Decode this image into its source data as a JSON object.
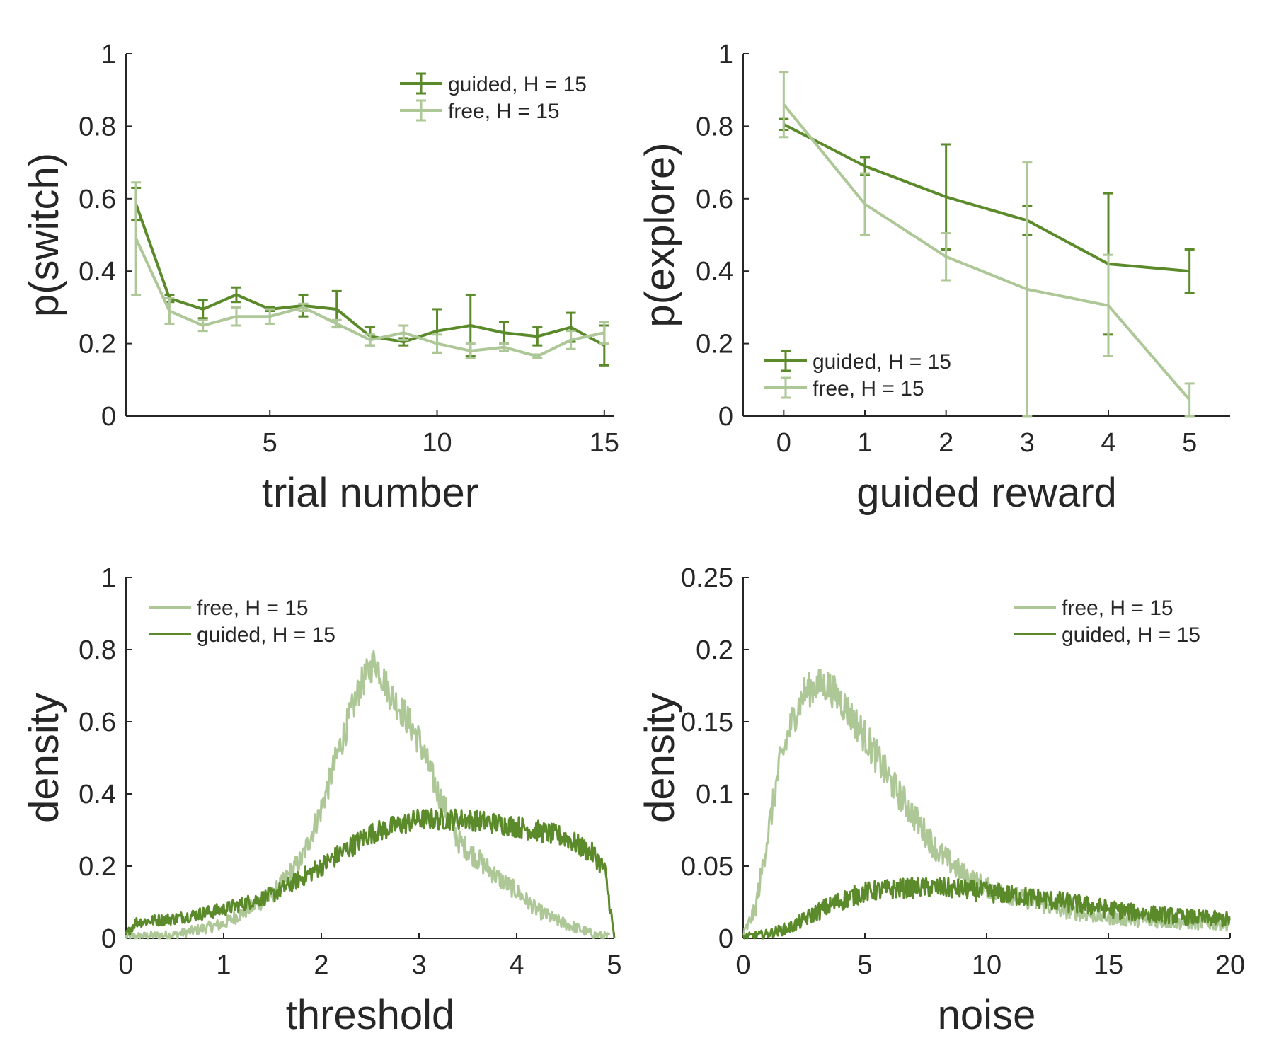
{
  "colors": {
    "guided": "#5b8a2a",
    "free": "#adc797",
    "axis": "#262626"
  },
  "chart_data": [
    {
      "id": "switch",
      "type": "line",
      "xlabel": "trial number",
      "ylabel": "p(switch)",
      "xlim": [
        0.7,
        15.3
      ],
      "ylim": [
        0,
        1
      ],
      "xticks": [
        5,
        10,
        15
      ],
      "xtick_labels": [
        "5",
        "10",
        "15"
      ],
      "yticks": [
        0,
        0.2,
        0.4,
        0.6,
        0.8,
        1
      ],
      "ytick_labels": [
        "0",
        "0.2",
        "0.4",
        "0.6",
        "0.8",
        "1"
      ],
      "legend_position": "top-right",
      "error_bars": true,
      "series": [
        {
          "key": "guided",
          "name": "guided, H = 15",
          "x": [
            1,
            2,
            3,
            4,
            5,
            6,
            7,
            8,
            9,
            10,
            11,
            12,
            13,
            14,
            15
          ],
          "y": [
            0.585,
            0.325,
            0.295,
            0.335,
            0.295,
            0.305,
            0.295,
            0.22,
            0.205,
            0.235,
            0.25,
            0.23,
            0.22,
            0.245,
            0.195
          ],
          "err": [
            0.045,
            0.01,
            0.025,
            0.02,
            0.005,
            0.03,
            0.05,
            0.025,
            0.01,
            0.06,
            0.085,
            0.03,
            0.025,
            0.04,
            0.055
          ]
        },
        {
          "key": "free",
          "name": "free, H = 15",
          "x": [
            1,
            2,
            3,
            4,
            5,
            6,
            7,
            8,
            9,
            10,
            11,
            12,
            13,
            14,
            15
          ],
          "y": [
            0.49,
            0.29,
            0.25,
            0.275,
            0.275,
            0.3,
            0.255,
            0.21,
            0.23,
            0.2,
            0.18,
            0.19,
            0.165,
            0.21,
            0.23
          ],
          "err": [
            0.155,
            0.035,
            0.015,
            0.025,
            0.02,
            0.01,
            0.01,
            0.015,
            0.02,
            0.025,
            0.02,
            0.01,
            0.005,
            0.025,
            0.03
          ]
        }
      ]
    },
    {
      "id": "explore",
      "type": "line",
      "xlabel": "guided reward",
      "ylabel": "p(explore)",
      "xlim": [
        -0.5,
        5.5
      ],
      "ylim": [
        0,
        1
      ],
      "xticks": [
        0,
        1,
        2,
        3,
        4,
        5
      ],
      "xtick_labels": [
        "0",
        "1",
        "2",
        "3",
        "4",
        "5"
      ],
      "yticks": [
        0,
        0.2,
        0.4,
        0.6,
        0.8,
        1
      ],
      "ytick_labels": [
        "0",
        "0.2",
        "0.4",
        "0.6",
        "0.8",
        "1"
      ],
      "legend_position": "bottom-left",
      "error_bars": true,
      "series": [
        {
          "key": "guided",
          "name": "guided, H = 15",
          "x": [
            0,
            1,
            2,
            3,
            4,
            5
          ],
          "y": [
            0.805,
            0.69,
            0.605,
            0.54,
            0.42,
            0.4
          ],
          "err": [
            0.015,
            0.025,
            0.145,
            0.04,
            0.195,
            0.06
          ]
        },
        {
          "key": "free",
          "name": "free, H = 15",
          "x": [
            0,
            1,
            2,
            3,
            4,
            5
          ],
          "y": [
            0.86,
            0.585,
            0.44,
            0.35,
            0.305,
            0.045
          ],
          "err": [
            0.09,
            0.085,
            0.065,
            0.35,
            0.14,
            0.045
          ]
        }
      ]
    },
    {
      "id": "threshold",
      "type": "line",
      "xlabel": "threshold",
      "ylabel": "density",
      "xlim": [
        0,
        5
      ],
      "ylim": [
        0,
        1
      ],
      "xticks": [
        0,
        1,
        2,
        3,
        4,
        5
      ],
      "xtick_labels": [
        "0",
        "1",
        "2",
        "3",
        "4",
        "5"
      ],
      "yticks": [
        0,
        0.2,
        0.4,
        0.6,
        0.8,
        1
      ],
      "ytick_labels": [
        "0",
        "0.2",
        "0.4",
        "0.6",
        "0.8",
        "1"
      ],
      "legend_position": "top-left",
      "error_bars": false,
      "series": [
        {
          "key": "free",
          "name": "free, H = 15",
          "x": [
            0,
            0.5,
            1,
            1.5,
            1.8,
            2,
            2.2,
            2.4,
            2.55,
            2.7,
            2.85,
            3,
            3.2,
            3.4,
            3.6,
            3.8,
            4,
            4.2,
            4.4,
            4.6,
            4.8,
            4.95
          ],
          "y": [
            0.005,
            0.01,
            0.04,
            0.12,
            0.22,
            0.36,
            0.54,
            0.7,
            0.77,
            0.68,
            0.62,
            0.55,
            0.4,
            0.27,
            0.22,
            0.17,
            0.13,
            0.08,
            0.05,
            0.03,
            0.01,
            0.005
          ],
          "noise": 0.045
        },
        {
          "key": "guided",
          "name": "guided, H = 15",
          "x": [
            0,
            0.1,
            0.5,
            1,
            1.5,
            2,
            2.5,
            3,
            3.5,
            4,
            4.5,
            4.8,
            4.9,
            4.96,
            5
          ],
          "y": [
            0.01,
            0.045,
            0.055,
            0.08,
            0.12,
            0.2,
            0.29,
            0.33,
            0.33,
            0.31,
            0.28,
            0.23,
            0.19,
            0.08,
            0.0
          ],
          "noise": 0.03
        }
      ]
    },
    {
      "id": "noise",
      "type": "line",
      "xlabel": "noise",
      "ylabel": "density",
      "xlim": [
        0,
        20
      ],
      "ylim": [
        0,
        0.25
      ],
      "xticks": [
        0,
        5,
        10,
        15,
        20
      ],
      "xtick_labels": [
        "0",
        "5",
        "10",
        "15",
        "20"
      ],
      "yticks": [
        0,
        0.05,
        0.1,
        0.15,
        0.2,
        0.25
      ],
      "ytick_labels": [
        "0",
        "0.05",
        "0.1",
        "0.15",
        "0.2",
        "0.25"
      ],
      "legend_position": "top-right",
      "error_bars": false,
      "series": [
        {
          "key": "free",
          "name": "free, H = 15",
          "x": [
            0,
            0.5,
            1,
            1.5,
            2,
            2.5,
            3,
            3.5,
            4,
            5,
            6,
            7,
            8,
            9,
            10,
            11,
            12,
            13,
            14,
            15,
            16,
            18,
            20
          ],
          "y": [
            0.002,
            0.02,
            0.07,
            0.12,
            0.15,
            0.17,
            0.175,
            0.175,
            0.165,
            0.14,
            0.11,
            0.085,
            0.06,
            0.045,
            0.035,
            0.03,
            0.025,
            0.02,
            0.017,
            0.015,
            0.013,
            0.011,
            0.01
          ],
          "noise": 0.012
        },
        {
          "key": "guided",
          "name": "guided, H = 15",
          "x": [
            0,
            1,
            2,
            3,
            4,
            5,
            6,
            7,
            8,
            9,
            10,
            12,
            14,
            16,
            18,
            20
          ],
          "y": [
            0.001,
            0.003,
            0.008,
            0.018,
            0.026,
            0.032,
            0.034,
            0.035,
            0.035,
            0.034,
            0.032,
            0.028,
            0.023,
            0.018,
            0.015,
            0.013
          ],
          "noise": 0.007
        }
      ]
    }
  ]
}
